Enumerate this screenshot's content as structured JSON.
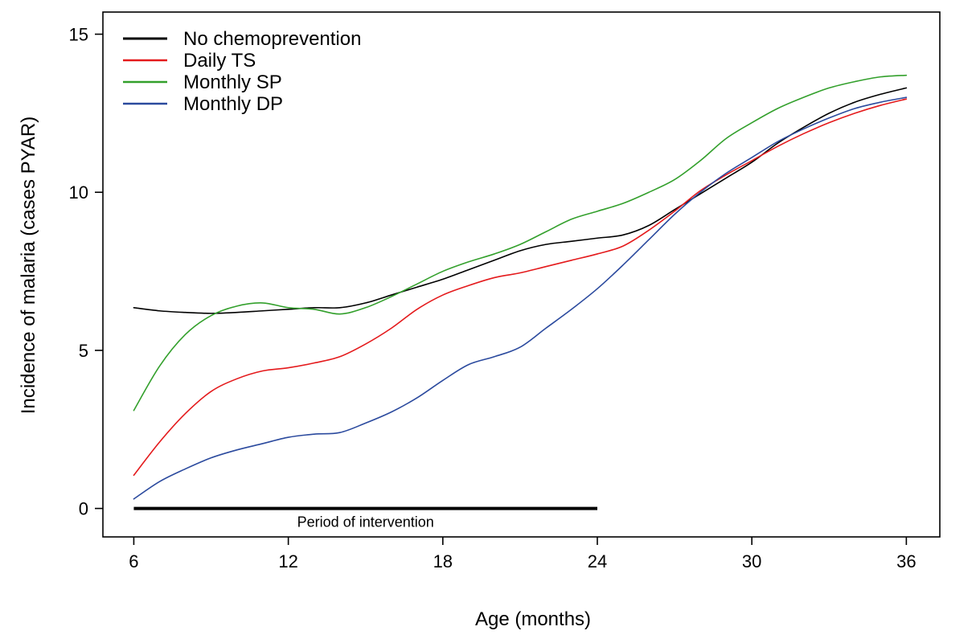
{
  "chart_data": {
    "type": "line",
    "title": "",
    "xlabel": "Age (months)",
    "ylabel": "Incidence of malaria (cases PYAR)",
    "xlim": [
      4.8,
      37.3
    ],
    "ylim": [
      -0.9,
      15.7
    ],
    "xticks": [
      6,
      12,
      18,
      24,
      30,
      36
    ],
    "yticks": [
      0,
      5,
      10,
      15
    ],
    "grid": false,
    "legend_position": "top-left",
    "x": [
      6,
      7,
      8,
      9,
      10,
      11,
      12,
      13,
      14,
      15,
      16,
      17,
      18,
      19,
      20,
      21,
      22,
      23,
      24,
      25,
      26,
      27,
      28,
      29,
      30,
      31,
      32,
      33,
      34,
      35,
      36
    ],
    "series": [
      {
        "name": "No chemoprevention",
        "color": "#000000",
        "values": [
          6.35,
          6.25,
          6.2,
          6.17,
          6.2,
          6.25,
          6.3,
          6.35,
          6.35,
          6.5,
          6.75,
          7.0,
          7.25,
          7.55,
          7.85,
          8.15,
          8.35,
          8.45,
          8.55,
          8.65,
          8.95,
          9.45,
          9.95,
          10.45,
          10.95,
          11.55,
          12.05,
          12.5,
          12.85,
          13.1,
          13.3
        ]
      },
      {
        "name": "Daily TS",
        "color": "#e41a1c",
        "values": [
          1.05,
          2.1,
          3.0,
          3.7,
          4.1,
          4.35,
          4.45,
          4.6,
          4.8,
          5.2,
          5.7,
          6.3,
          6.75,
          7.05,
          7.3,
          7.45,
          7.65,
          7.85,
          8.05,
          8.3,
          8.8,
          9.4,
          10.05,
          10.55,
          11.0,
          11.45,
          11.85,
          12.2,
          12.5,
          12.75,
          12.95
        ]
      },
      {
        "name": "Monthly SP",
        "color": "#33a02c",
        "values": [
          3.1,
          4.5,
          5.5,
          6.1,
          6.4,
          6.5,
          6.35,
          6.3,
          6.15,
          6.35,
          6.7,
          7.1,
          7.5,
          7.8,
          8.05,
          8.35,
          8.75,
          9.15,
          9.4,
          9.65,
          10.0,
          10.4,
          11.0,
          11.7,
          12.2,
          12.65,
          13.0,
          13.3,
          13.5,
          13.65,
          13.7
        ]
      },
      {
        "name": "Monthly DP",
        "color": "#2b4a9e",
        "values": [
          0.3,
          0.85,
          1.25,
          1.6,
          1.85,
          2.05,
          2.25,
          2.35,
          2.4,
          2.7,
          3.05,
          3.5,
          4.05,
          4.55,
          4.8,
          5.1,
          5.7,
          6.3,
          6.95,
          7.7,
          8.5,
          9.3,
          10.0,
          10.6,
          11.1,
          11.6,
          12.0,
          12.35,
          12.65,
          12.85,
          13.0
        ]
      }
    ],
    "annotations": [
      {
        "text": "Period of intervention",
        "x_start": 6,
        "x_end": 24,
        "y": 0
      }
    ]
  }
}
